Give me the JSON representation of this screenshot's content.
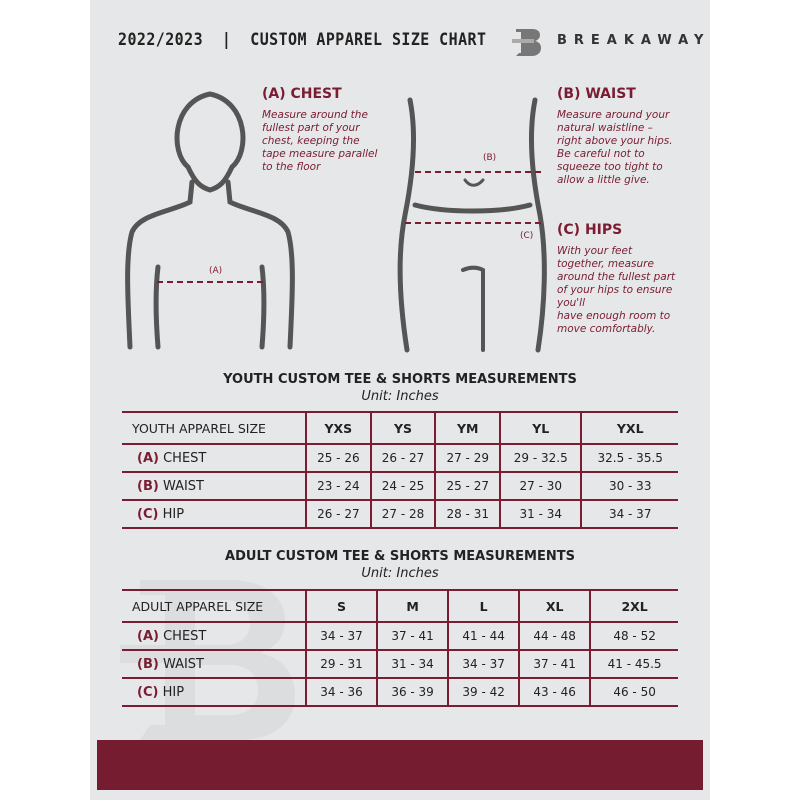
{
  "header": {
    "title": "2022/2023  |  CUSTOM APPAREL SIZE CHART",
    "brand": "BREAKAWAY",
    "logo_letter": "B"
  },
  "measures": {
    "chest": {
      "title": "(A) CHEST",
      "lines": [
        "Measure around the",
        "fullest part of your",
        "chest, keeping the",
        "tape measure parallel",
        "to the floor"
      ],
      "marker": "(A)"
    },
    "waist": {
      "title": "(B) WAIST",
      "lines": [
        "Measure around your",
        "natural waistline –",
        "right above your hips.",
        "Be careful not to",
        "squeeze too tight to",
        "allow a little give."
      ],
      "marker": "(B)"
    },
    "hips": {
      "title": "(C) HIPS",
      "lines": [
        "With your feet",
        "together, measure",
        "around the fullest part",
        "of your hips to ensure",
        "you'll",
        "have enough room to",
        "move comfortably."
      ],
      "marker": "(C)"
    }
  },
  "youth": {
    "heading": "YOUTH CUSTOM TEE & SHORTS MEASUREMENTS",
    "unit": "Unit: Inches",
    "size_label": "YOUTH APPAREL SIZE",
    "sizes": [
      "YXS",
      "YS",
      "YM",
      "YL",
      "YXL"
    ],
    "rows": [
      {
        "key": "(A)",
        "label": "CHEST",
        "values": [
          "25 - 26",
          "26 - 27",
          "27 - 29",
          "29 - 32.5",
          "32.5 - 35.5"
        ]
      },
      {
        "key": "(B)",
        "label": "WAIST",
        "values": [
          "23 - 24",
          "24 - 25",
          "25 - 27",
          "27 - 30",
          "30 - 33"
        ]
      },
      {
        "key": "(C)",
        "label": "HIP",
        "values": [
          "26 - 27",
          "27 - 28",
          "28 - 31",
          "31 - 34",
          "34 - 37"
        ]
      }
    ]
  },
  "adult": {
    "heading": "ADULT CUSTOM TEE & SHORTS MEASUREMENTS",
    "unit": "Unit: Inches",
    "size_label": "ADULT APPAREL SIZE",
    "sizes": [
      "S",
      "M",
      "L",
      "XL",
      "2XL"
    ],
    "rows": [
      {
        "key": "(A)",
        "label": "CHEST",
        "values": [
          "34 - 37",
          "37 - 41",
          "41 - 44",
          "44 - 48",
          "48 - 52"
        ]
      },
      {
        "key": "(B)",
        "label": "WAIST",
        "values": [
          "29 - 31",
          "31 - 34",
          "34 - 37",
          "37 - 41",
          "41 - 45.5"
        ]
      },
      {
        "key": "(C)",
        "label": "HIP",
        "values": [
          "34 - 36",
          "36 - 39",
          "39 - 42",
          "43 - 46",
          "46 - 50"
        ]
      }
    ]
  },
  "colors": {
    "accent": "#7a1c32",
    "background": "#e6e7e8"
  }
}
